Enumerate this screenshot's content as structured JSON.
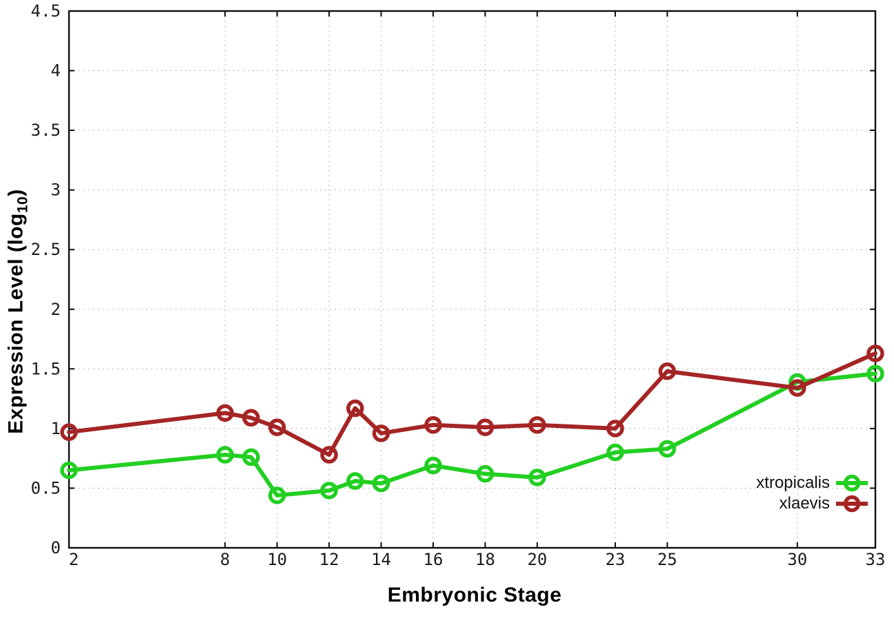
{
  "chart_data": {
    "type": "line",
    "title": "",
    "xlabel": "Embryonic Stage",
    "ylabel": "Expression Level (log10)",
    "ylabel_parts": {
      "prefix": "Expression Level (log",
      "subscript": "10",
      "suffix": ")"
    },
    "x": [
      2,
      8,
      9,
      10,
      12,
      13,
      14,
      16,
      18,
      20,
      23,
      25,
      30,
      33
    ],
    "series": [
      {
        "name": "xtropicalis",
        "color": "#22cf22",
        "marker": "open-circle",
        "values": [
          0.65,
          0.78,
          0.76,
          0.44,
          0.48,
          0.56,
          0.54,
          0.69,
          0.62,
          0.59,
          0.8,
          0.83,
          1.39,
          1.46
        ]
      },
      {
        "name": "xlaevis",
        "color": "#a52525",
        "marker": "open-circle",
        "values": [
          0.97,
          1.13,
          1.09,
          1.01,
          0.78,
          1.17,
          0.96,
          1.03,
          1.01,
          1.03,
          1.0,
          1.48,
          1.34,
          1.63
        ]
      }
    ],
    "xlim": [
      2,
      33
    ],
    "ylim": [
      0,
      4.5
    ],
    "xticks": [
      2,
      8,
      10,
      12,
      14,
      16,
      18,
      20,
      23,
      25,
      30,
      33
    ],
    "xtick_labels": [
      "2",
      "8",
      "10",
      "12",
      "14",
      "16",
      "18",
      "20",
      "23",
      "25",
      "30",
      "33"
    ],
    "yticks": [
      0,
      0.5,
      1,
      1.5,
      2,
      2.5,
      3,
      3.5,
      4,
      4.5
    ],
    "ytick_labels": [
      "0",
      "0.5",
      "1",
      "1.5",
      "2",
      "2.5",
      "3",
      "3.5",
      "4",
      "4.5"
    ],
    "grid": true,
    "legend_position": "inside-bottom-right",
    "legend_entries": [
      "xtropicalis",
      "xlaevis"
    ],
    "draw_order": "xlaevis-on-top"
  },
  "style": {
    "background": "#ffffff",
    "grid_color": "#b8b8b8",
    "axis_color": "#0c0c0c",
    "tick_label_color": "#1c1c1c"
  }
}
